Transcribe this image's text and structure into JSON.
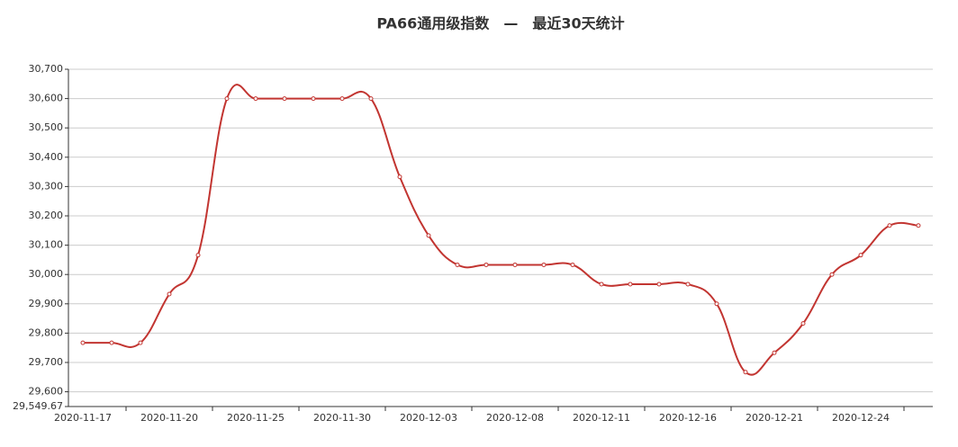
{
  "chart_data": {
    "type": "line",
    "title": "PA66通用级指数　—　最近30天统计",
    "categories": [
      "2020-11-17",
      null,
      null,
      "2020-11-20",
      null,
      null,
      "2020-11-25",
      null,
      null,
      "2020-11-30",
      null,
      null,
      "2020-12-03",
      null,
      null,
      "2020-12-08",
      null,
      null,
      "2020-12-11",
      null,
      null,
      "2020-12-16",
      null,
      null,
      "2020-12-21",
      null,
      null,
      "2020-12-24",
      null,
      null
    ],
    "series": [
      {
        "name": "PA66通用级",
        "color": "#c23531",
        "values": [
          29767,
          29767,
          29767,
          29933,
          30066,
          30600,
          30600,
          30600,
          30600,
          30600,
          30600,
          30333,
          30133,
          30033,
          30033,
          30033,
          30033,
          30033,
          29967,
          29967,
          29967,
          29967,
          29900,
          29667,
          29733,
          29833,
          30000,
          30066,
          30167,
          30167
        ]
      }
    ],
    "ylim": [
      29549.67,
      30700
    ],
    "yticks": [
      {
        "value": 29549.67,
        "label": "29,549.67"
      },
      {
        "value": 29600,
        "label": "29,600"
      },
      {
        "value": 29700,
        "label": "29,700"
      },
      {
        "value": 29800,
        "label": "29,800"
      },
      {
        "value": 29900,
        "label": "29,900"
      },
      {
        "value": 30000,
        "label": "30,000"
      },
      {
        "value": 30100,
        "label": "30,100"
      },
      {
        "value": 30200,
        "label": "30,200"
      },
      {
        "value": 30300,
        "label": "30,300"
      },
      {
        "value": 30400,
        "label": "30,400"
      },
      {
        "value": 30500,
        "label": "30,500"
      },
      {
        "value": 30600,
        "label": "30,600"
      },
      {
        "value": 30700,
        "label": "30,700"
      }
    ],
    "grid": true
  }
}
